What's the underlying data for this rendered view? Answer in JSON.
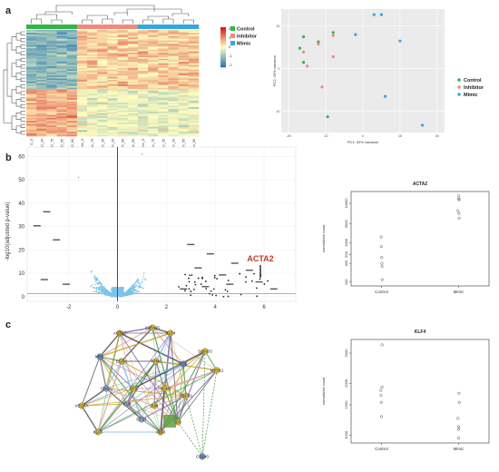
{
  "panel_labels": {
    "a": "a",
    "b": "b",
    "c": "c"
  },
  "colors": {
    "control": "#35b44a",
    "inhibitor": "#f08a80",
    "mimic": "#35a7dc",
    "volcano_point": "#7ec3e8",
    "acta2_label": "#c0392b",
    "heat_low": "#2c7bb6",
    "heat_mid": "#ffffbf",
    "heat_high": "#d7191c"
  },
  "heatmap": {
    "legend": [
      "Control",
      "Inhibitor",
      "Mimic"
    ],
    "colorbar_ticks": [
      "2",
      "1",
      "0",
      "-1",
      "-2"
    ],
    "column_labels": [
      "D_5",
      "D_20",
      "D_75",
      "D_55",
      "D_60",
      "Inhi_5",
      "Inhi_75",
      "Inhi_35",
      "Inhi_20",
      "Inhi_60",
      "Inhi_55",
      "Mimi_5",
      "Mimi_75",
      "Mimi_35",
      "Mimi_20",
      "Mimi_55",
      "Mimi_60"
    ],
    "column_groups": [
      "control",
      "control",
      "control",
      "control",
      "control",
      "inhibitor",
      "inhibitor",
      "inhibitor",
      "inhibitor",
      "inhibitor",
      "inhibitor",
      "mimic",
      "mimic",
      "mimic",
      "mimic",
      "mimic",
      "mimic"
    ]
  },
  "pca": {
    "legend": [
      "Control",
      "Inhibitor",
      "Mimic"
    ],
    "xlabel": "PC1: 32% variance",
    "ylabel": "PC2: 29% variance",
    "x_ticks": [
      "-20",
      "-10",
      "0",
      "10",
      "20"
    ],
    "y_ticks": [
      "10",
      "0",
      "-10"
    ]
  },
  "volcano": {
    "ylabel": "-log10(adjusted p-value)",
    "x_ticks": [
      "-2",
      "0",
      "2",
      "4",
      "6"
    ],
    "y_ticks": [
      "0",
      "10",
      "20",
      "30",
      "40",
      "50",
      "60"
    ],
    "highlight": "ACTA2"
  },
  "acta2_plot": {
    "title": "ACTA2",
    "ylabel": "normalized count",
    "categories": [
      "Control",
      "Mimic"
    ],
    "y_ticks": [
      "100",
      "300",
      "500",
      "1000",
      "3000",
      "10000"
    ]
  },
  "klf4_plot": {
    "title": "KLF4",
    "ylabel": "normalized count",
    "categories": [
      "Control",
      "Mimic"
    ],
    "y_ticks": [
      "1000",
      "1500",
      "2000",
      "3000"
    ]
  },
  "network": {
    "nodes": [
      "MIR495",
      "ACTA2",
      "KLF4",
      "SMAD3",
      "MYC",
      "EGR1",
      "TPM1",
      "FOS",
      "MYH11",
      "CNN1",
      "SP1",
      "TAGLN",
      "TGFB1",
      "VEGFA",
      "ELN",
      "JUN",
      "ETS1",
      "ID3",
      "KLF5",
      "ATF3",
      "CD140"
    ]
  }
}
